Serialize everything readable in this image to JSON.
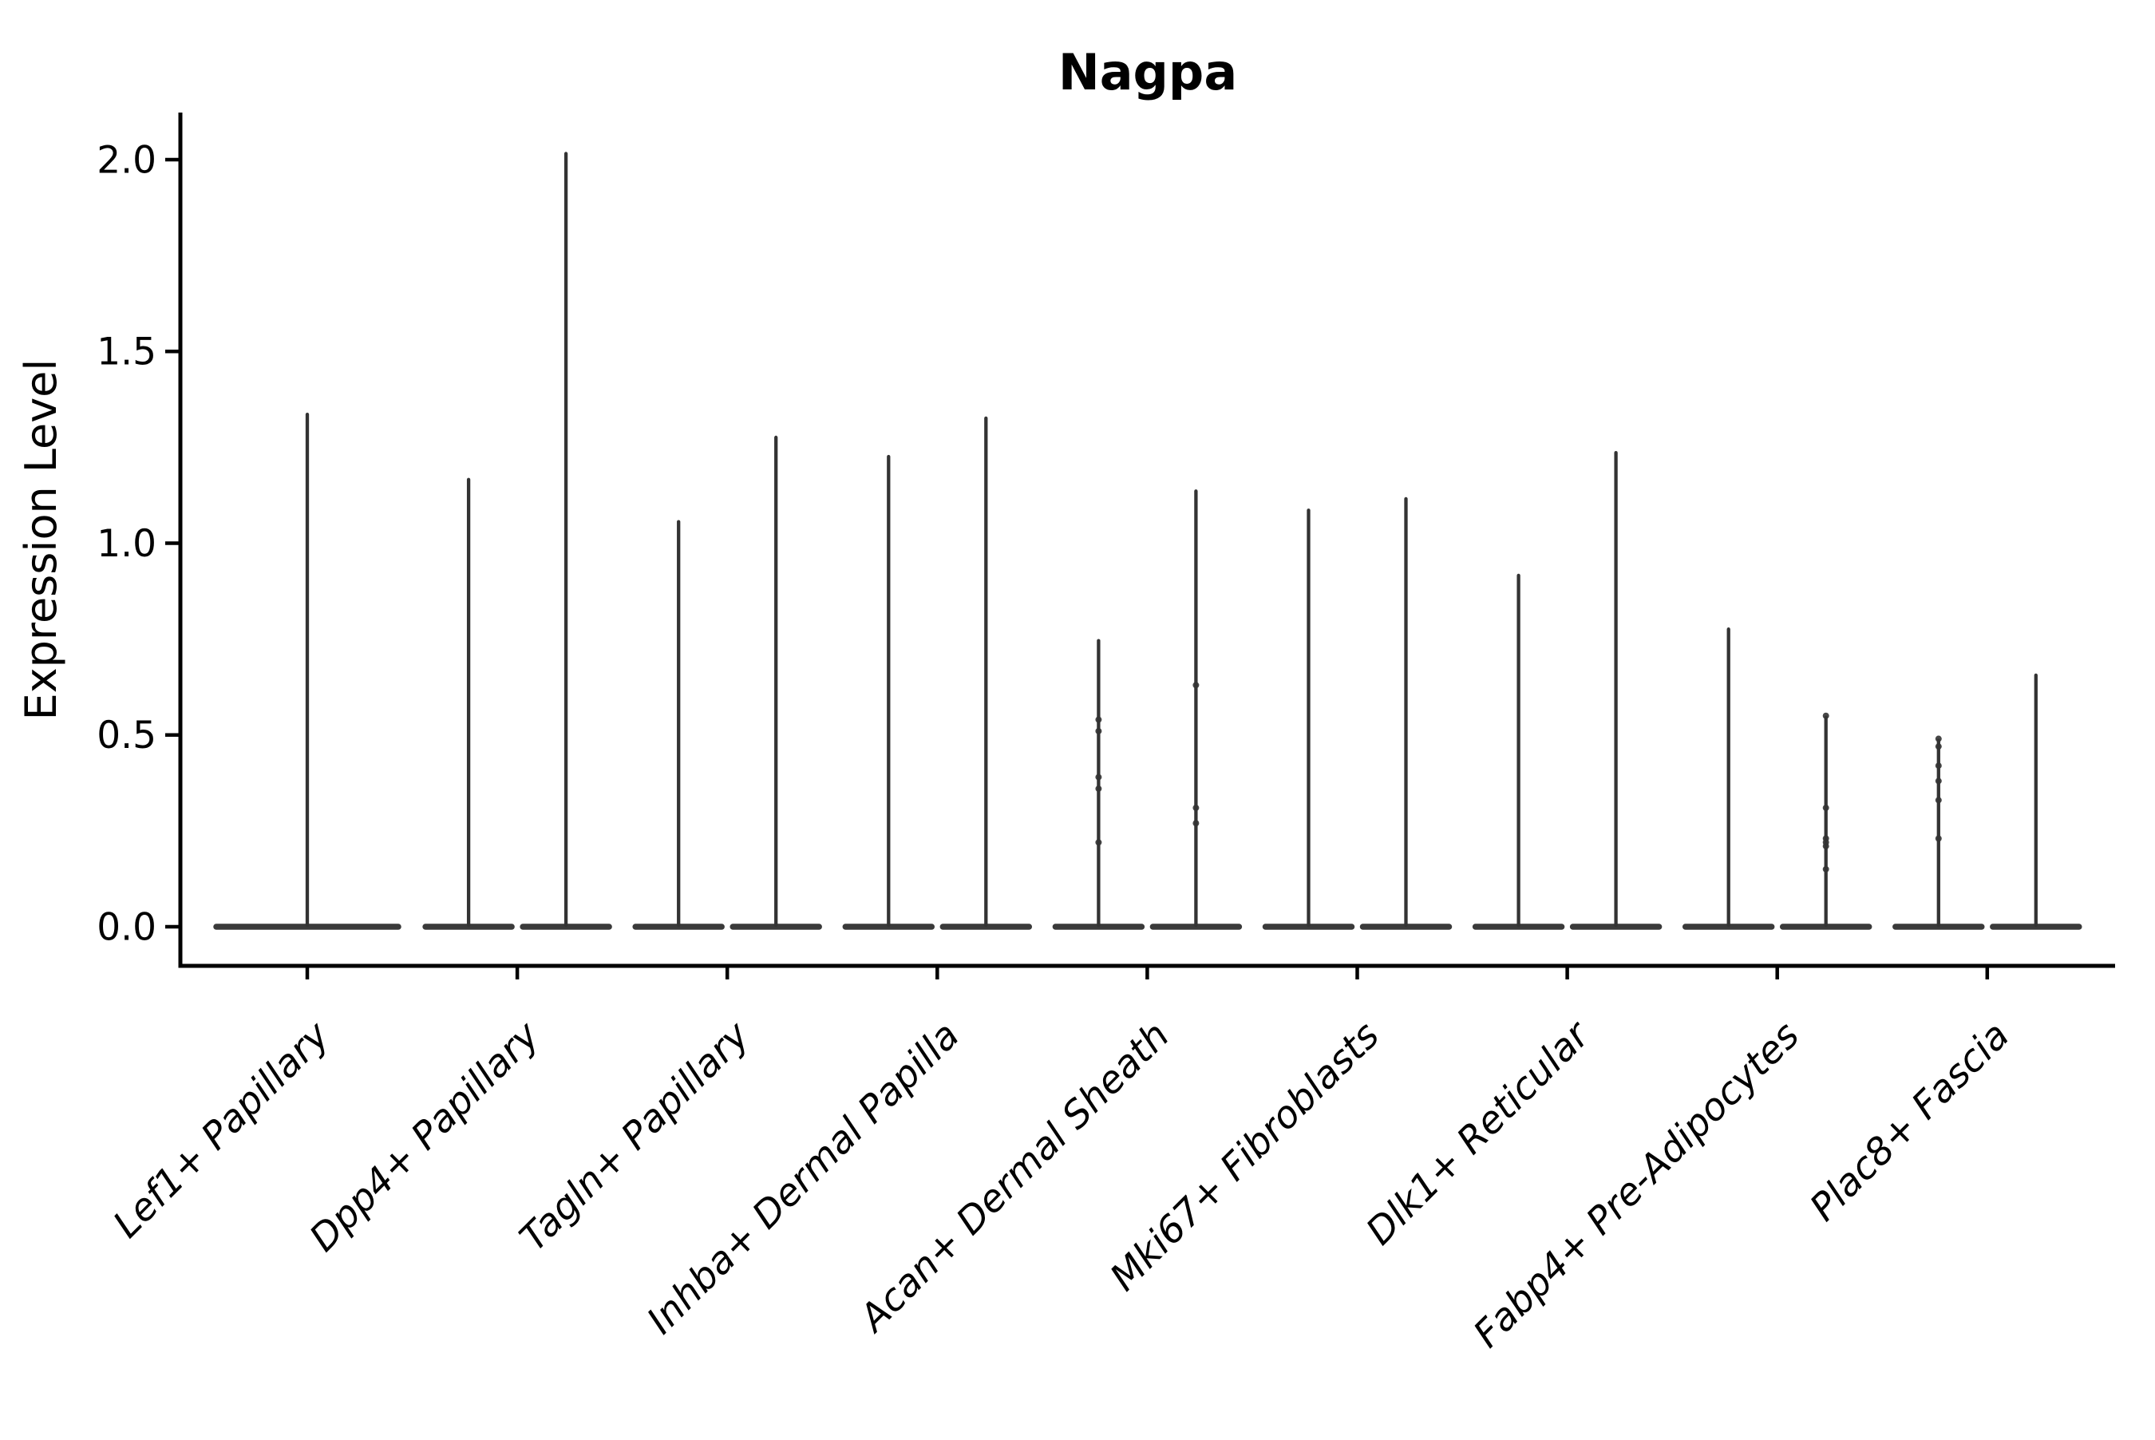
{
  "chart_data": {
    "type": "violin",
    "title": "Nagpa",
    "ylabel": "Expression Level",
    "xlabel": "",
    "yticks": [
      0.0,
      0.5,
      1.0,
      1.5,
      2.0
    ],
    "ytick_labels": [
      "0.0",
      "0.5",
      "1.0",
      "1.5",
      "2.0"
    ],
    "ylim": [
      -0.1,
      2.12
    ],
    "grid": false,
    "legend_position": "none",
    "violin_color": "#333333",
    "axis_color": "#000000",
    "background_color": "#ffffff",
    "description": "Needle-thin violins: bulk of distribution at 0 (flat baseline), thin spike to max expression; first category one wide violin, others two violins each; small jitter points visible on some spikes",
    "groups": [
      {
        "label": "Lef1+ Papillary",
        "violins": [
          {
            "max": 1.34,
            "points": []
          }
        ]
      },
      {
        "label": "Dpp4+ Papillary",
        "violins": [
          {
            "max": 1.17,
            "points": []
          },
          {
            "max": 2.02,
            "points": []
          }
        ]
      },
      {
        "label": "Tagln+ Papillary",
        "violins": [
          {
            "max": 1.06,
            "points": []
          },
          {
            "max": 1.28,
            "points": []
          }
        ]
      },
      {
        "label": "Inhba+ Dermal Papilla",
        "violins": [
          {
            "max": 1.23,
            "points": []
          },
          {
            "max": 1.33,
            "points": []
          }
        ]
      },
      {
        "label": "Acan+ Dermal Sheath",
        "violins": [
          {
            "max": 0.75,
            "points": [
              0.54,
              0.51,
              0.39,
              0.36,
              0.22
            ]
          },
          {
            "max": 1.14,
            "points": [
              0.63,
              0.31,
              0.27
            ]
          }
        ]
      },
      {
        "label": "Mki67+ Fibroblasts",
        "violins": [
          {
            "max": 1.09,
            "points": []
          },
          {
            "max": 1.12,
            "points": []
          }
        ]
      },
      {
        "label": "Dlk1+ Reticular",
        "violins": [
          {
            "max": 0.92,
            "points": []
          },
          {
            "max": 1.24,
            "points": []
          }
        ]
      },
      {
        "label": "Fabp4+ Pre-Adipocytes",
        "violins": [
          {
            "max": 0.78,
            "points": []
          },
          {
            "max": 0.55,
            "points": [
              0.55,
              0.31,
              0.23,
              0.22,
              0.21,
              0.15
            ]
          }
        ]
      },
      {
        "label": "Plac8+ Fascia",
        "violins": [
          {
            "max": 0.49,
            "points": [
              0.49,
              0.47,
              0.42,
              0.38,
              0.33,
              0.23
            ]
          },
          {
            "max": 0.66,
            "points": []
          }
        ]
      }
    ]
  }
}
